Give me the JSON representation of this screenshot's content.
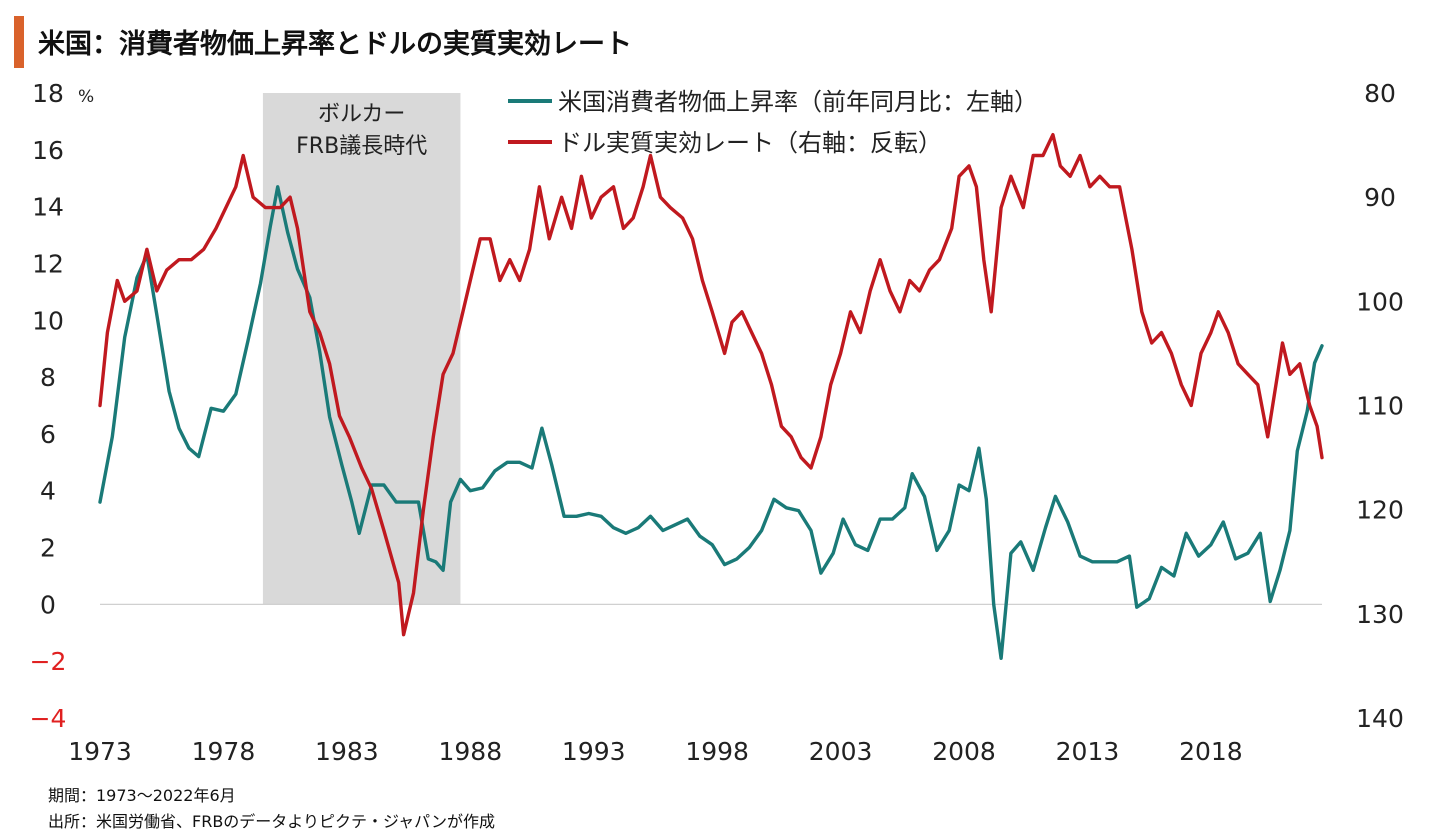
{
  "header": {
    "title": "米国：消費者物価上昇率とドルの実質実効レート",
    "accent_color": "#d9622b"
  },
  "footnotes": {
    "period": "期間：1973～2022年6月",
    "source": "出所：米国労働省、FRBのデータよりピクテ・ジャパンが作成"
  },
  "chart_data": {
    "type": "line",
    "left_axis": {
      "unit": "%",
      "ylim": [
        -4,
        18
      ],
      "ticks": [
        18,
        16,
        14,
        12,
        10,
        8,
        6,
        4,
        2,
        0,
        -2,
        -4
      ],
      "negative_tick_color": "#e02020"
    },
    "right_axis": {
      "ylim_inverted": [
        80,
        140
      ],
      "ticks": [
        80,
        90,
        100,
        110,
        120,
        130,
        140
      ]
    },
    "x_ticks": [
      1973,
      1978,
      1983,
      1988,
      1993,
      1998,
      2003,
      2008,
      2013,
      2018
    ],
    "xlim": [
      1973,
      2022.5
    ],
    "shaded_region": {
      "label_line1": "ボルカー",
      "label_line2": "FRB議長時代",
      "x_start": 1979.6,
      "x_end": 1987.6,
      "color": "#d9d9d9"
    },
    "series": [
      {
        "name": "米国消費者物価上昇率（前年同月比：左軸）",
        "axis": "left",
        "color": "#1a7a78",
        "points": [
          [
            1973.0,
            3.6
          ],
          [
            1973.5,
            5.9
          ],
          [
            1974.0,
            9.4
          ],
          [
            1974.5,
            11.5
          ],
          [
            1974.9,
            12.3
          ],
          [
            1975.3,
            10.2
          ],
          [
            1975.8,
            7.5
          ],
          [
            1976.2,
            6.2
          ],
          [
            1976.6,
            5.5
          ],
          [
            1977.0,
            5.2
          ],
          [
            1977.5,
            6.9
          ],
          [
            1978.0,
            6.8
          ],
          [
            1978.5,
            7.4
          ],
          [
            1979.0,
            9.3
          ],
          [
            1979.5,
            11.3
          ],
          [
            1979.9,
            13.3
          ],
          [
            1980.2,
            14.7
          ],
          [
            1980.6,
            13.1
          ],
          [
            1981.0,
            11.8
          ],
          [
            1981.5,
            10.8
          ],
          [
            1981.9,
            8.9
          ],
          [
            1982.3,
            6.6
          ],
          [
            1982.8,
            4.9
          ],
          [
            1983.2,
            3.6
          ],
          [
            1983.5,
            2.5
          ],
          [
            1984.0,
            4.2
          ],
          [
            1984.5,
            4.2
          ],
          [
            1985.0,
            3.6
          ],
          [
            1985.5,
            3.6
          ],
          [
            1985.9,
            3.6
          ],
          [
            1986.3,
            1.6
          ],
          [
            1986.6,
            1.5
          ],
          [
            1986.9,
            1.2
          ],
          [
            1987.2,
            3.6
          ],
          [
            1987.6,
            4.4
          ],
          [
            1988.0,
            4.0
          ],
          [
            1988.5,
            4.1
          ],
          [
            1989.0,
            4.7
          ],
          [
            1989.5,
            5.0
          ],
          [
            1990.0,
            5.0
          ],
          [
            1990.5,
            4.8
          ],
          [
            1990.9,
            6.2
          ],
          [
            1991.3,
            4.9
          ],
          [
            1991.8,
            3.1
          ],
          [
            1992.3,
            3.1
          ],
          [
            1992.8,
            3.2
          ],
          [
            1993.3,
            3.1
          ],
          [
            1993.8,
            2.7
          ],
          [
            1994.3,
            2.5
          ],
          [
            1994.8,
            2.7
          ],
          [
            1995.3,
            3.1
          ],
          [
            1995.8,
            2.6
          ],
          [
            1996.3,
            2.8
          ],
          [
            1996.8,
            3.0
          ],
          [
            1997.3,
            2.4
          ],
          [
            1997.8,
            2.1
          ],
          [
            1998.3,
            1.4
          ],
          [
            1998.8,
            1.6
          ],
          [
            1999.3,
            2.0
          ],
          [
            1999.8,
            2.6
          ],
          [
            2000.3,
            3.7
          ],
          [
            2000.8,
            3.4
          ],
          [
            2001.3,
            3.3
          ],
          [
            2001.8,
            2.6
          ],
          [
            2002.2,
            1.1
          ],
          [
            2002.7,
            1.8
          ],
          [
            2003.1,
            3.0
          ],
          [
            2003.6,
            2.1
          ],
          [
            2004.1,
            1.9
          ],
          [
            2004.6,
            3.0
          ],
          [
            2005.1,
            3.0
          ],
          [
            2005.6,
            3.4
          ],
          [
            2005.9,
            4.6
          ],
          [
            2006.4,
            3.8
          ],
          [
            2006.9,
            1.9
          ],
          [
            2007.4,
            2.6
          ],
          [
            2007.8,
            4.2
          ],
          [
            2008.2,
            4.0
          ],
          [
            2008.6,
            5.5
          ],
          [
            2008.9,
            3.7
          ],
          [
            2009.2,
            0.0
          ],
          [
            2009.5,
            -1.9
          ],
          [
            2009.9,
            1.8
          ],
          [
            2010.3,
            2.2
          ],
          [
            2010.8,
            1.2
          ],
          [
            2011.3,
            2.7
          ],
          [
            2011.7,
            3.8
          ],
          [
            2012.2,
            2.9
          ],
          [
            2012.7,
            1.7
          ],
          [
            2013.2,
            1.5
          ],
          [
            2013.7,
            1.5
          ],
          [
            2014.2,
            1.5
          ],
          [
            2014.7,
            1.7
          ],
          [
            2015.0,
            -0.1
          ],
          [
            2015.5,
            0.2
          ],
          [
            2016.0,
            1.3
          ],
          [
            2016.5,
            1.0
          ],
          [
            2017.0,
            2.5
          ],
          [
            2017.5,
            1.7
          ],
          [
            2018.0,
            2.1
          ],
          [
            2018.5,
            2.9
          ],
          [
            2019.0,
            1.6
          ],
          [
            2019.5,
            1.8
          ],
          [
            2020.0,
            2.5
          ],
          [
            2020.4,
            0.1
          ],
          [
            2020.8,
            1.2
          ],
          [
            2021.2,
            2.6
          ],
          [
            2021.5,
            5.4
          ],
          [
            2021.9,
            6.8
          ],
          [
            2022.2,
            8.5
          ],
          [
            2022.5,
            9.1
          ]
        ]
      },
      {
        "name": "ドル実質実効レート（右軸：反転）",
        "axis": "right",
        "color": "#c0191f",
        "points": [
          [
            1973.0,
            110
          ],
          [
            1973.3,
            103
          ],
          [
            1973.7,
            98
          ],
          [
            1974.0,
            100
          ],
          [
            1974.5,
            99
          ],
          [
            1974.9,
            95
          ],
          [
            1975.3,
            99
          ],
          [
            1975.7,
            97
          ],
          [
            1976.2,
            96
          ],
          [
            1976.7,
            96
          ],
          [
            1977.2,
            95
          ],
          [
            1977.7,
            93
          ],
          [
            1978.1,
            91
          ],
          [
            1978.5,
            89
          ],
          [
            1978.8,
            86
          ],
          [
            1979.2,
            90
          ],
          [
            1979.7,
            91
          ],
          [
            1980.0,
            91
          ],
          [
            1980.3,
            91
          ],
          [
            1980.7,
            90
          ],
          [
            1981.0,
            93
          ],
          [
            1981.5,
            101
          ],
          [
            1981.9,
            103
          ],
          [
            1982.3,
            106
          ],
          [
            1982.7,
            111
          ],
          [
            1983.1,
            113
          ],
          [
            1983.6,
            116
          ],
          [
            1984.0,
            118
          ],
          [
            1984.5,
            122
          ],
          [
            1985.1,
            127
          ],
          [
            1985.3,
            132
          ],
          [
            1985.7,
            128
          ],
          [
            1986.1,
            120
          ],
          [
            1986.5,
            113
          ],
          [
            1986.9,
            107
          ],
          [
            1987.3,
            105
          ],
          [
            1987.7,
            101
          ],
          [
            1988.0,
            98
          ],
          [
            1988.4,
            94
          ],
          [
            1988.8,
            94
          ],
          [
            1989.2,
            98
          ],
          [
            1989.6,
            96
          ],
          [
            1990.0,
            98
          ],
          [
            1990.4,
            95
          ],
          [
            1990.8,
            89
          ],
          [
            1991.2,
            94
          ],
          [
            1991.7,
            90
          ],
          [
            1992.1,
            93
          ],
          [
            1992.5,
            88
          ],
          [
            1992.9,
            92
          ],
          [
            1993.3,
            90
          ],
          [
            1993.8,
            89
          ],
          [
            1994.2,
            93
          ],
          [
            1994.6,
            92
          ],
          [
            1995.0,
            89
          ],
          [
            1995.3,
            86
          ],
          [
            1995.7,
            90
          ],
          [
            1996.1,
            91
          ],
          [
            1996.6,
            92
          ],
          [
            1997.0,
            94
          ],
          [
            1997.4,
            98
          ],
          [
            1997.8,
            101
          ],
          [
            1998.3,
            105
          ],
          [
            1998.6,
            102
          ],
          [
            1999.0,
            101
          ],
          [
            1999.4,
            103
          ],
          [
            1999.8,
            105
          ],
          [
            2000.2,
            108
          ],
          [
            2000.6,
            112
          ],
          [
            2001.0,
            113
          ],
          [
            2001.4,
            115
          ],
          [
            2001.8,
            116
          ],
          [
            2002.2,
            113
          ],
          [
            2002.6,
            108
          ],
          [
            2003.0,
            105
          ],
          [
            2003.4,
            101
          ],
          [
            2003.8,
            103
          ],
          [
            2004.2,
            99
          ],
          [
            2004.6,
            96
          ],
          [
            2005.0,
            99
          ],
          [
            2005.4,
            101
          ],
          [
            2005.8,
            98
          ],
          [
            2006.2,
            99
          ],
          [
            2006.6,
            97
          ],
          [
            2007.0,
            96
          ],
          [
            2007.5,
            93
          ],
          [
            2007.8,
            88
          ],
          [
            2008.2,
            87
          ],
          [
            2008.5,
            89
          ],
          [
            2008.8,
            96
          ],
          [
            2009.1,
            101
          ],
          [
            2009.5,
            91
          ],
          [
            2009.9,
            88
          ],
          [
            2010.4,
            91
          ],
          [
            2010.8,
            86
          ],
          [
            2011.2,
            86
          ],
          [
            2011.6,
            84
          ],
          [
            2011.9,
            87
          ],
          [
            2012.3,
            88
          ],
          [
            2012.7,
            86
          ],
          [
            2013.1,
            89
          ],
          [
            2013.5,
            88
          ],
          [
            2013.9,
            89
          ],
          [
            2014.3,
            89
          ],
          [
            2014.8,
            95
          ],
          [
            2015.2,
            101
          ],
          [
            2015.6,
            104
          ],
          [
            2016.0,
            103
          ],
          [
            2016.4,
            105
          ],
          [
            2016.8,
            108
          ],
          [
            2017.2,
            110
          ],
          [
            2017.6,
            105
          ],
          [
            2018.0,
            103
          ],
          [
            2018.3,
            101
          ],
          [
            2018.7,
            103
          ],
          [
            2019.1,
            106
          ],
          [
            2019.5,
            107
          ],
          [
            2019.9,
            108
          ],
          [
            2020.3,
            113
          ],
          [
            2020.7,
            107
          ],
          [
            2020.9,
            104
          ],
          [
            2021.2,
            107
          ],
          [
            2021.6,
            106
          ],
          [
            2022.0,
            110
          ],
          [
            2022.3,
            112
          ],
          [
            2022.5,
            115
          ]
        ]
      }
    ]
  }
}
